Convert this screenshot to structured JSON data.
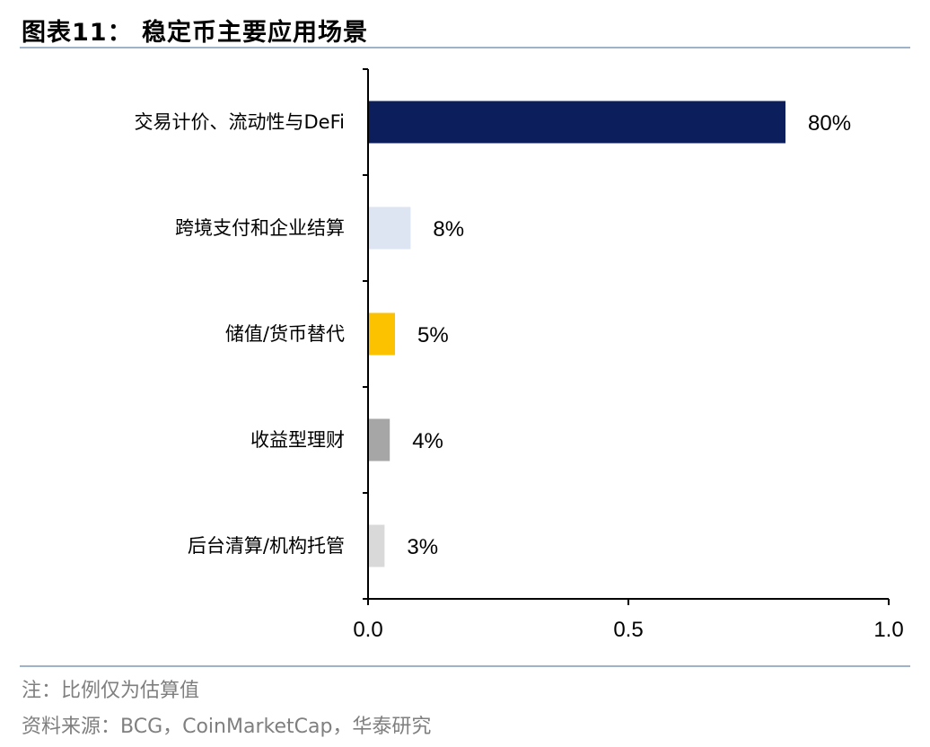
{
  "header": {
    "title": "图表11：  稳定币主要应用场景"
  },
  "footer": {
    "note": "注：比例仅为估算值",
    "source": "资料来源：BCG，CoinMarketCap，华泰研究"
  },
  "chart_data": {
    "type": "bar",
    "orientation": "horizontal",
    "title": "",
    "xlabel": "",
    "ylabel": "",
    "categories": [
      "交易计价、流动性与DeFi",
      "跨境支付和企业结算",
      "储值/货币替代",
      "收益型理财",
      "后台清算/机构托管"
    ],
    "values": [
      0.8,
      0.08,
      0.05,
      0.04,
      0.03
    ],
    "value_labels": [
      "80%",
      "8%",
      "5%",
      "4%",
      "3%"
    ],
    "colors": [
      "#0c1f5c",
      "#dce5f1",
      "#fcc200",
      "#a6a6a6",
      "#d9d9d9"
    ],
    "xlim": [
      0,
      1.0
    ],
    "xticks": [
      0.0,
      0.5,
      1.0
    ],
    "xtick_labels": [
      "0.0",
      "0.5",
      "1.0"
    ],
    "grid": false,
    "legend": "none"
  }
}
